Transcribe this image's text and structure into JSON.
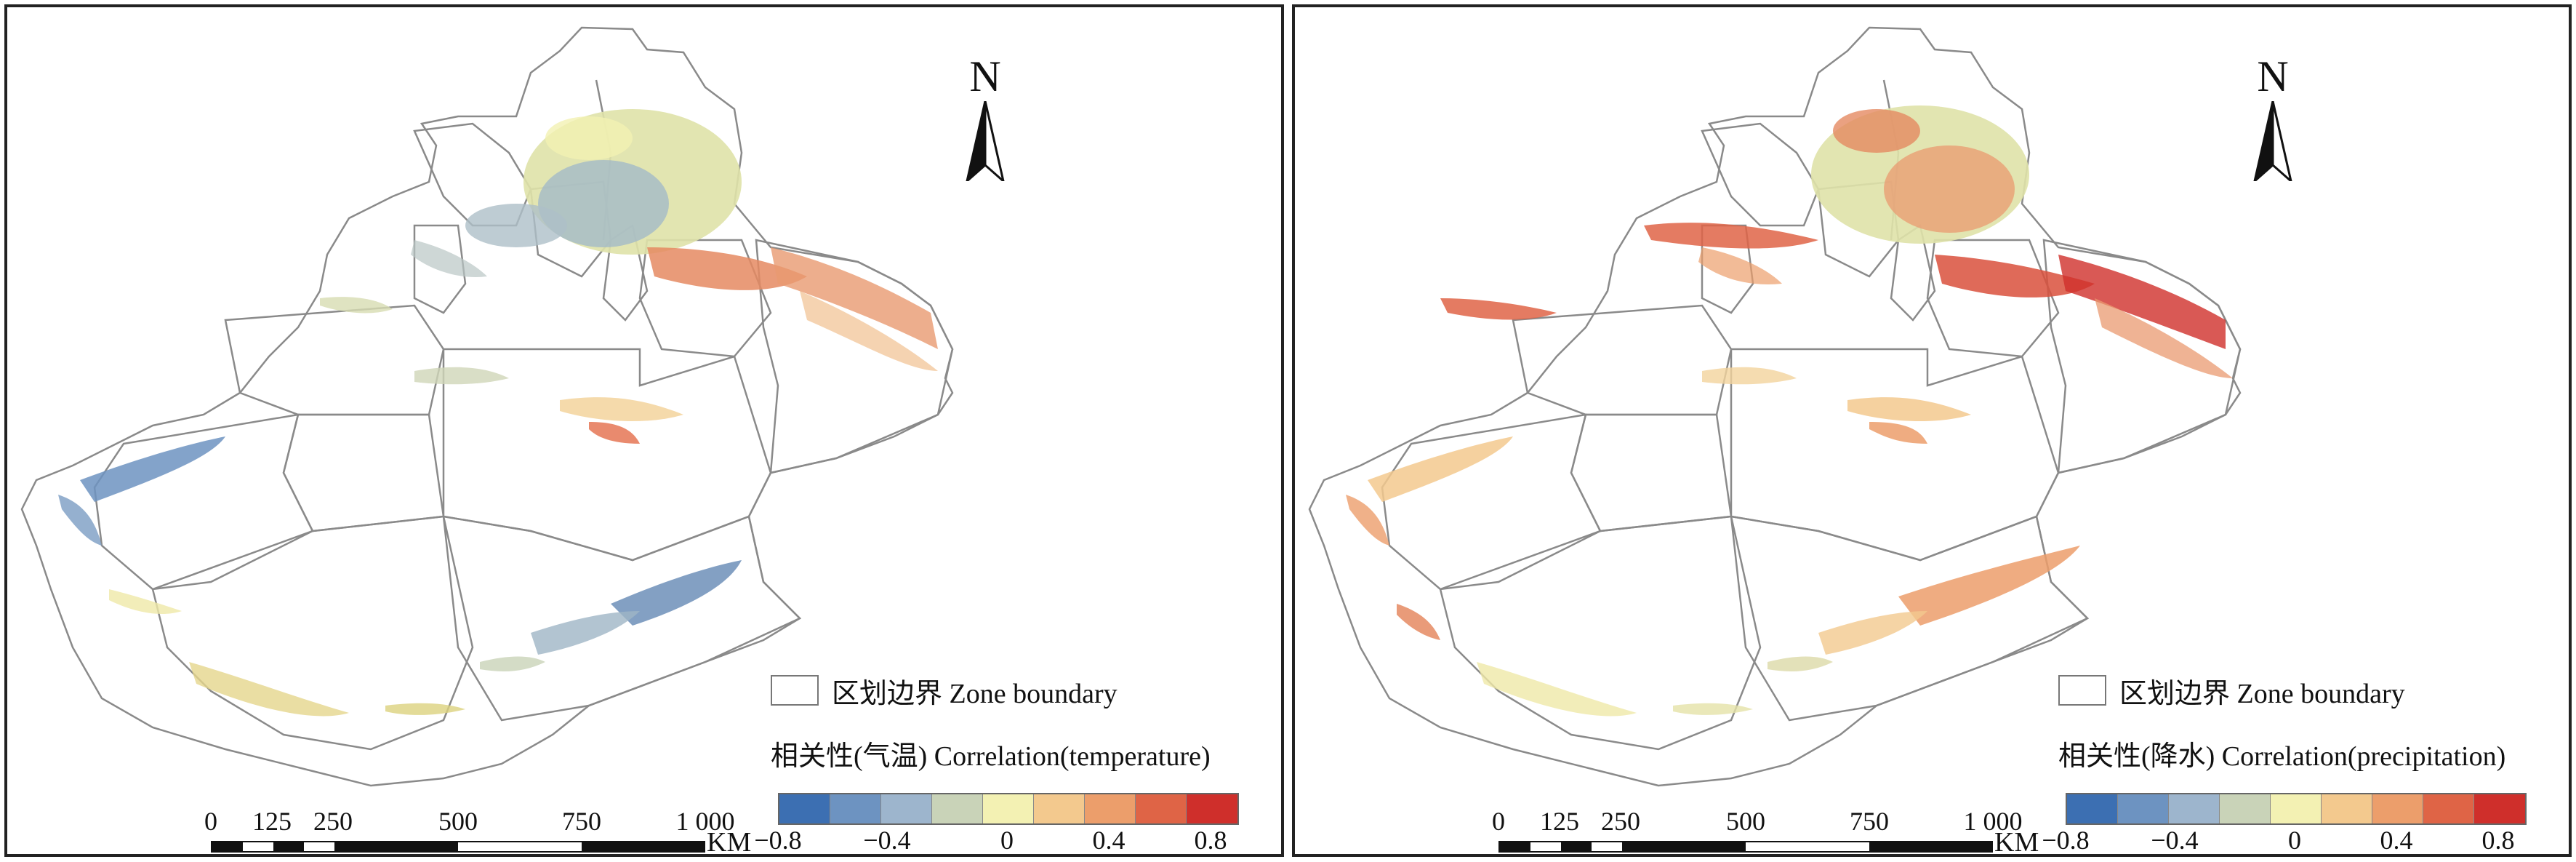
{
  "north_label": "N",
  "scale_bar": {
    "ticks": [
      "0",
      "125",
      "250",
      "500",
      "750",
      "1 000"
    ],
    "unit": "KM"
  },
  "colors": {
    "ramp": [
      "#3c6fb2",
      "#6d93c1",
      "#9db5cd",
      "#c9d3b8",
      "#f3f1b3",
      "#f3c98e",
      "#ec9e6b",
      "#df6446",
      "#cf2f2b"
    ],
    "boundary": "#8a8a8a"
  },
  "panels": [
    {
      "id": "temperature",
      "legend_zone_label": "区划边界 Zone boundary",
      "legend_title": "相关性(气温) Correlation(temperature)",
      "ramp_labels": [
        "−0.8",
        "−0.4",
        "0",
        "0.4",
        "0.8"
      ]
    },
    {
      "id": "precipitation",
      "legend_zone_label": "区划边界 Zone boundary",
      "legend_title": "相关性(降水) Correlation(precipitation)",
      "ramp_labels": [
        "−0.8",
        "−0.4",
        "0",
        "0.4",
        "0.8"
      ]
    }
  ]
}
